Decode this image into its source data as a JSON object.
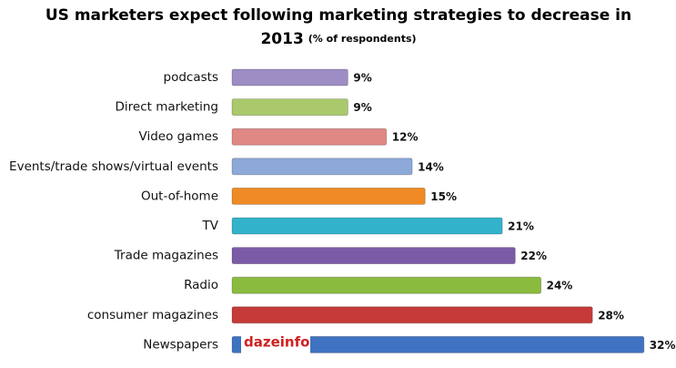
{
  "chart_data": {
    "type": "bar",
    "orientation": "horizontal",
    "title": [
      "US marketers expect following marketing strategies to decrease in",
      "2013"
    ],
    "subtitle": "(% of respondents)",
    "categories": [
      "podcasts",
      "Direct marketing",
      "Video games",
      "Events/trade shows/virtual events",
      "Out-of-home",
      "TV",
      "Trade magazines",
      "Radio",
      "consumer magazines",
      "Newspapers"
    ],
    "values": [
      9,
      9,
      12,
      14,
      15,
      21,
      22,
      24,
      28,
      32
    ],
    "value_labels": [
      "9%",
      "9%",
      "12%",
      "14%",
      "15%",
      "21%",
      "22%",
      "24%",
      "28%",
      "32%"
    ],
    "colors": [
      "#9d8dc4",
      "#a9c96c",
      "#e08884",
      "#8ca9d9",
      "#ef8a24",
      "#33b3cb",
      "#7c5ba6",
      "#8bbb3e",
      "#c63a39",
      "#3f73c2"
    ],
    "watermark": "dazeinfo"
  }
}
